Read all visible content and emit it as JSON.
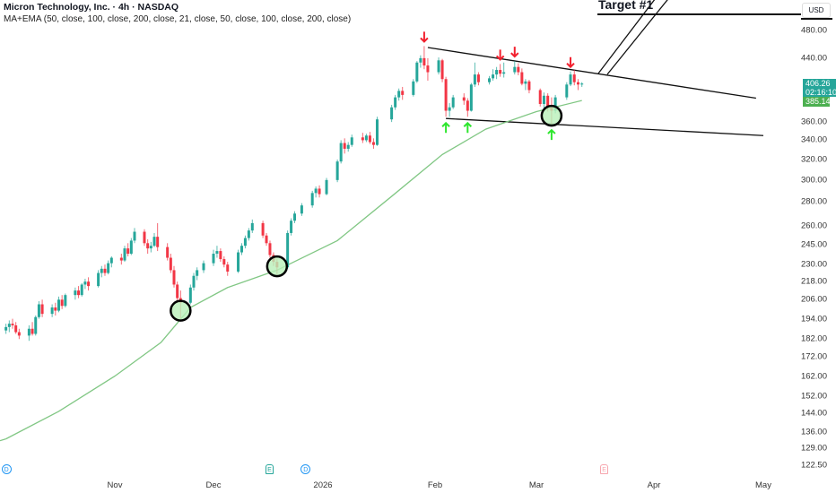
{
  "header": {
    "title": "Micron Technology, Inc. · 4h · NASDAQ",
    "indicator": "MA+EMA (50, close, 100, close, 200, close, 21, close, 50, close, 100, close, 200, close)"
  },
  "price_axis": {
    "currency": "USD",
    "last_price": "406.26",
    "countdown": "02:16:10",
    "ma_value": "385.14"
  },
  "events": [
    {
      "type": "D",
      "date": "2025-09-29"
    },
    {
      "type": "E",
      "date": "2025-12-17"
    },
    {
      "type": "D",
      "date": "2025-12-27"
    },
    {
      "type": "E",
      "date": "2026-03-19"
    }
  ],
  "colors": {
    "up": "#26a69a",
    "down": "#f23645",
    "ma": "#81c784",
    "highlight": "#b9f0b9",
    "arrow_down": "#f2202e",
    "arrow_up": "#2ee62e"
  },
  "annotations": {
    "target_label": "Target #1",
    "target_price": 505,
    "upper_trendline": [
      [
        "2026-01-30",
        455
      ],
      [
        "2026-04-29",
        388
      ]
    ],
    "lower_trendline": [
      [
        "2026-02-04",
        364
      ],
      [
        "2026-05-01",
        345
      ]
    ]
  },
  "chart_data": {
    "type": "candlestick",
    "title": "Micron Technology, Inc. · 4h · NASDAQ",
    "y_scale": "log",
    "ylim": [
      120,
      510
    ],
    "y_ticks": [
      "480.00",
      "440.00",
      "360.00",
      "340.00",
      "320.00",
      "300.00",
      "280.00",
      "260.00",
      "245.00",
      "230.00",
      "218.00",
      "206.00",
      "194.00",
      "182.00",
      "172.00",
      "162.00",
      "152.00",
      "144.00",
      "136.00",
      "129.00",
      "122.50"
    ],
    "x_ticks": [
      {
        "label": "Nov",
        "date": "2025-11-01"
      },
      {
        "label": "Dec",
        "date": "2025-12-01"
      },
      {
        "label": "2026",
        "date": "2026-01-01"
      },
      {
        "label": "Feb",
        "date": "2026-02-01"
      },
      {
        "label": "Mar",
        "date": "2026-03-01"
      },
      {
        "label": "Apr",
        "date": "2026-04-01"
      },
      {
        "label": "May",
        "date": "2026-05-01"
      }
    ],
    "grid": false,
    "candles_columns": [
      "date",
      "open",
      "high",
      "low",
      "close"
    ],
    "candles": [
      [
        "2025-09-29",
        187,
        191,
        185,
        189
      ],
      [
        "2025-09-30",
        189,
        193,
        186,
        191
      ],
      [
        "2025-10-01",
        191,
        194,
        188,
        190
      ],
      [
        "2025-10-02",
        190,
        192,
        185,
        186
      ],
      [
        "2025-10-03",
        186,
        188,
        182,
        184
      ],
      [
        "2025-10-06",
        184,
        190,
        181,
        188
      ],
      [
        "2025-10-07",
        188,
        192,
        184,
        185
      ],
      [
        "2025-10-08",
        185,
        196,
        184,
        195
      ],
      [
        "2025-10-09",
        195,
        205,
        194,
        203
      ],
      [
        "2025-10-10",
        203,
        206,
        195,
        197
      ],
      [
        "2025-10-13",
        197,
        203,
        195,
        201
      ],
      [
        "2025-10-14",
        201,
        204,
        196,
        199
      ],
      [
        "2025-10-15",
        199,
        208,
        198,
        206
      ],
      [
        "2025-10-16",
        206,
        209,
        200,
        202
      ],
      [
        "2025-10-17",
        202,
        210,
        201,
        209
      ],
      [
        "2025-10-20",
        209,
        214,
        206,
        212
      ],
      [
        "2025-10-21",
        212,
        215,
        207,
        209
      ],
      [
        "2025-10-22",
        209,
        217,
        208,
        216
      ],
      [
        "2025-10-23",
        216,
        220,
        213,
        218
      ],
      [
        "2025-10-24",
        218,
        221,
        212,
        215
      ],
      [
        "2025-10-27",
        215,
        226,
        214,
        224
      ],
      [
        "2025-10-28",
        224,
        229,
        221,
        227
      ],
      [
        "2025-10-29",
        227,
        230,
        222,
        224
      ],
      [
        "2025-10-30",
        224,
        233,
        223,
        231
      ],
      [
        "2025-10-31",
        231,
        236,
        228,
        235
      ],
      [
        "2025-11-03",
        235,
        238,
        230,
        233
      ],
      [
        "2025-11-04",
        233,
        244,
        232,
        242
      ],
      [
        "2025-11-05",
        242,
        246,
        236,
        238
      ],
      [
        "2025-11-06",
        238,
        250,
        237,
        248
      ],
      [
        "2025-11-07",
        248,
        258,
        246,
        255
      ],
      [
        "2025-11-10",
        255,
        257,
        244,
        246
      ],
      [
        "2025-11-11",
        246,
        249,
        238,
        242
      ],
      [
        "2025-11-12",
        242,
        247,
        239,
        244
      ],
      [
        "2025-11-13",
        244,
        254,
        243,
        251
      ],
      [
        "2025-11-14",
        251,
        262,
        240,
        243
      ],
      [
        "2025-11-17",
        243,
        246,
        233,
        235
      ],
      [
        "2025-11-18",
        235,
        238,
        224,
        226
      ],
      [
        "2025-11-19",
        226,
        229,
        214,
        216
      ],
      [
        "2025-11-20",
        216,
        218,
        204,
        207
      ],
      [
        "2025-11-21",
        207,
        212,
        194,
        204
      ],
      [
        "2025-11-24",
        204,
        216,
        203,
        214
      ],
      [
        "2025-11-25",
        214,
        224,
        212,
        222
      ],
      [
        "2025-11-26",
        222,
        228,
        219,
        226
      ],
      [
        "2025-11-28",
        226,
        233,
        224,
        231
      ],
      [
        "2025-12-01",
        231,
        241,
        229,
        238
      ],
      [
        "2025-12-02",
        238,
        244,
        235,
        240
      ],
      [
        "2025-12-03",
        240,
        242,
        232,
        234
      ],
      [
        "2025-12-04",
        234,
        236,
        228,
        230
      ],
      [
        "2025-12-05",
        230,
        232,
        222,
        225
      ],
      [
        "2025-12-08",
        225,
        241,
        224,
        239
      ],
      [
        "2025-12-09",
        239,
        246,
        237,
        244
      ],
      [
        "2025-12-10",
        244,
        252,
        242,
        250
      ],
      [
        "2025-12-11",
        250,
        258,
        248,
        256
      ],
      [
        "2025-12-12",
        256,
        265,
        254,
        262
      ],
      [
        "2025-12-15",
        262,
        264,
        250,
        252
      ],
      [
        "2025-12-16",
        252,
        254,
        244,
        246
      ],
      [
        "2025-12-17",
        246,
        248,
        235,
        237
      ],
      [
        "2025-12-18",
        237,
        239,
        229,
        232
      ],
      [
        "2025-12-19",
        232,
        234,
        223,
        228
      ],
      [
        "2025-12-22",
        228,
        256,
        227,
        254
      ],
      [
        "2025-12-23",
        254,
        266,
        252,
        264
      ],
      [
        "2025-12-24",
        264,
        272,
        262,
        270
      ],
      [
        "2025-12-26",
        270,
        279,
        268,
        277
      ],
      [
        "2025-12-29",
        277,
        290,
        275,
        288
      ],
      [
        "2025-12-30",
        288,
        294,
        284,
        292
      ],
      [
        "2025-12-31",
        292,
        295,
        284,
        287
      ],
      [
        "2026-01-02",
        287,
        302,
        286,
        300
      ],
      [
        "2026-01-05",
        300,
        320,
        298,
        318
      ],
      [
        "2026-01-06",
        318,
        340,
        316,
        337
      ],
      [
        "2026-01-07",
        337,
        342,
        326,
        331
      ],
      [
        "2026-01-08",
        331,
        338,
        328,
        335
      ],
      [
        "2026-01-09",
        335,
        346,
        333,
        343
      ],
      [
        "2026-01-12",
        343,
        348,
        337,
        340
      ],
      [
        "2026-01-13",
        340,
        347,
        338,
        345
      ],
      [
        "2026-01-14",
        345,
        349,
        336,
        338
      ],
      [
        "2026-01-15",
        338,
        342,
        331,
        335
      ],
      [
        "2026-01-16",
        335,
        366,
        334,
        363
      ],
      [
        "2026-01-20",
        363,
        380,
        360,
        377
      ],
      [
        "2026-01-21",
        377,
        392,
        374,
        389
      ],
      [
        "2026-01-22",
        389,
        400,
        385,
        397
      ],
      [
        "2026-01-23",
        397,
        402,
        386,
        392
      ],
      [
        "2026-01-26",
        392,
        412,
        390,
        409
      ],
      [
        "2026-01-27",
        409,
        436,
        407,
        434
      ],
      [
        "2026-01-28",
        434,
        444,
        427,
        440
      ],
      [
        "2026-01-29",
        440,
        457,
        425,
        430
      ],
      [
        "2026-01-30",
        430,
        440,
        410,
        421
      ],
      [
        "2026-02-02",
        421,
        441,
        418,
        437
      ],
      [
        "2026-02-03",
        437,
        439,
        408,
        412
      ],
      [
        "2026-02-04",
        412,
        415,
        366,
        373
      ],
      [
        "2026-02-05",
        373,
        382,
        366,
        377
      ],
      [
        "2026-02-06",
        377,
        392,
        375,
        389
      ],
      [
        "2026-02-09",
        389,
        394,
        380,
        385
      ],
      [
        "2026-02-10",
        385,
        388,
        366,
        373
      ],
      [
        "2026-02-11",
        373,
        407,
        372,
        405
      ],
      [
        "2026-02-12",
        405,
        434,
        402,
        418
      ],
      [
        "2026-02-13",
        418,
        421,
        404,
        408
      ],
      [
        "2026-02-16",
        408,
        416,
        405,
        413
      ],
      [
        "2026-02-17",
        413,
        425,
        410,
        418
      ],
      [
        "2026-02-18",
        418,
        428,
        412,
        424
      ],
      [
        "2026-02-19",
        424,
        432,
        415,
        419
      ],
      [
        "2026-02-20",
        419,
        434,
        414,
        421
      ],
      [
        "2026-02-23",
        421,
        436,
        418,
        428
      ],
      [
        "2026-02-24",
        428,
        433,
        417,
        421
      ],
      [
        "2026-02-25",
        421,
        426,
        404,
        406
      ],
      [
        "2026-02-26",
        406,
        412,
        398,
        409
      ],
      [
        "2026-02-27",
        409,
        411,
        394,
        398
      ],
      [
        "2026-03-02",
        398,
        400,
        378,
        381
      ],
      [
        "2026-03-03",
        381,
        395,
        376,
        391
      ],
      [
        "2026-03-04",
        391,
        394,
        372,
        377
      ],
      [
        "2026-03-05",
        377,
        389,
        358,
        373
      ],
      [
        "2026-03-06",
        373,
        392,
        370,
        389
      ],
      [
        "2026-03-09",
        389,
        408,
        386,
        405
      ],
      [
        "2026-03-10",
        405,
        422,
        403,
        418
      ],
      [
        "2026-03-11",
        418,
        424,
        404,
        408
      ],
      [
        "2026-03-12",
        408,
        412,
        398,
        405
      ],
      [
        "2026-03-13",
        405,
        408,
        402,
        406.26
      ]
    ],
    "moving_average": [
      [
        "2025-09-29",
        133
      ],
      [
        "2025-10-15",
        145
      ],
      [
        "2025-11-01",
        162
      ],
      [
        "2025-11-15",
        180
      ],
      [
        "2025-11-24",
        201
      ],
      [
        "2025-12-05",
        214
      ],
      [
        "2025-12-19",
        226
      ],
      [
        "2026-01-05",
        248
      ],
      [
        "2026-01-20",
        285
      ],
      [
        "2026-02-03",
        325
      ],
      [
        "2026-02-15",
        352
      ],
      [
        "2026-03-01",
        372
      ],
      [
        "2026-03-13",
        385.14
      ]
    ],
    "highlighted_touches": [
      "2025-11-21",
      "2025-12-19",
      "2026-03-05"
    ],
    "resistance_touches": [
      "2026-01-29",
      "2026-02-19",
      "2026-02-23",
      "2026-03-10"
    ],
    "support_touches": [
      "2026-02-04",
      "2026-02-10",
      "2026-03-05"
    ]
  }
}
